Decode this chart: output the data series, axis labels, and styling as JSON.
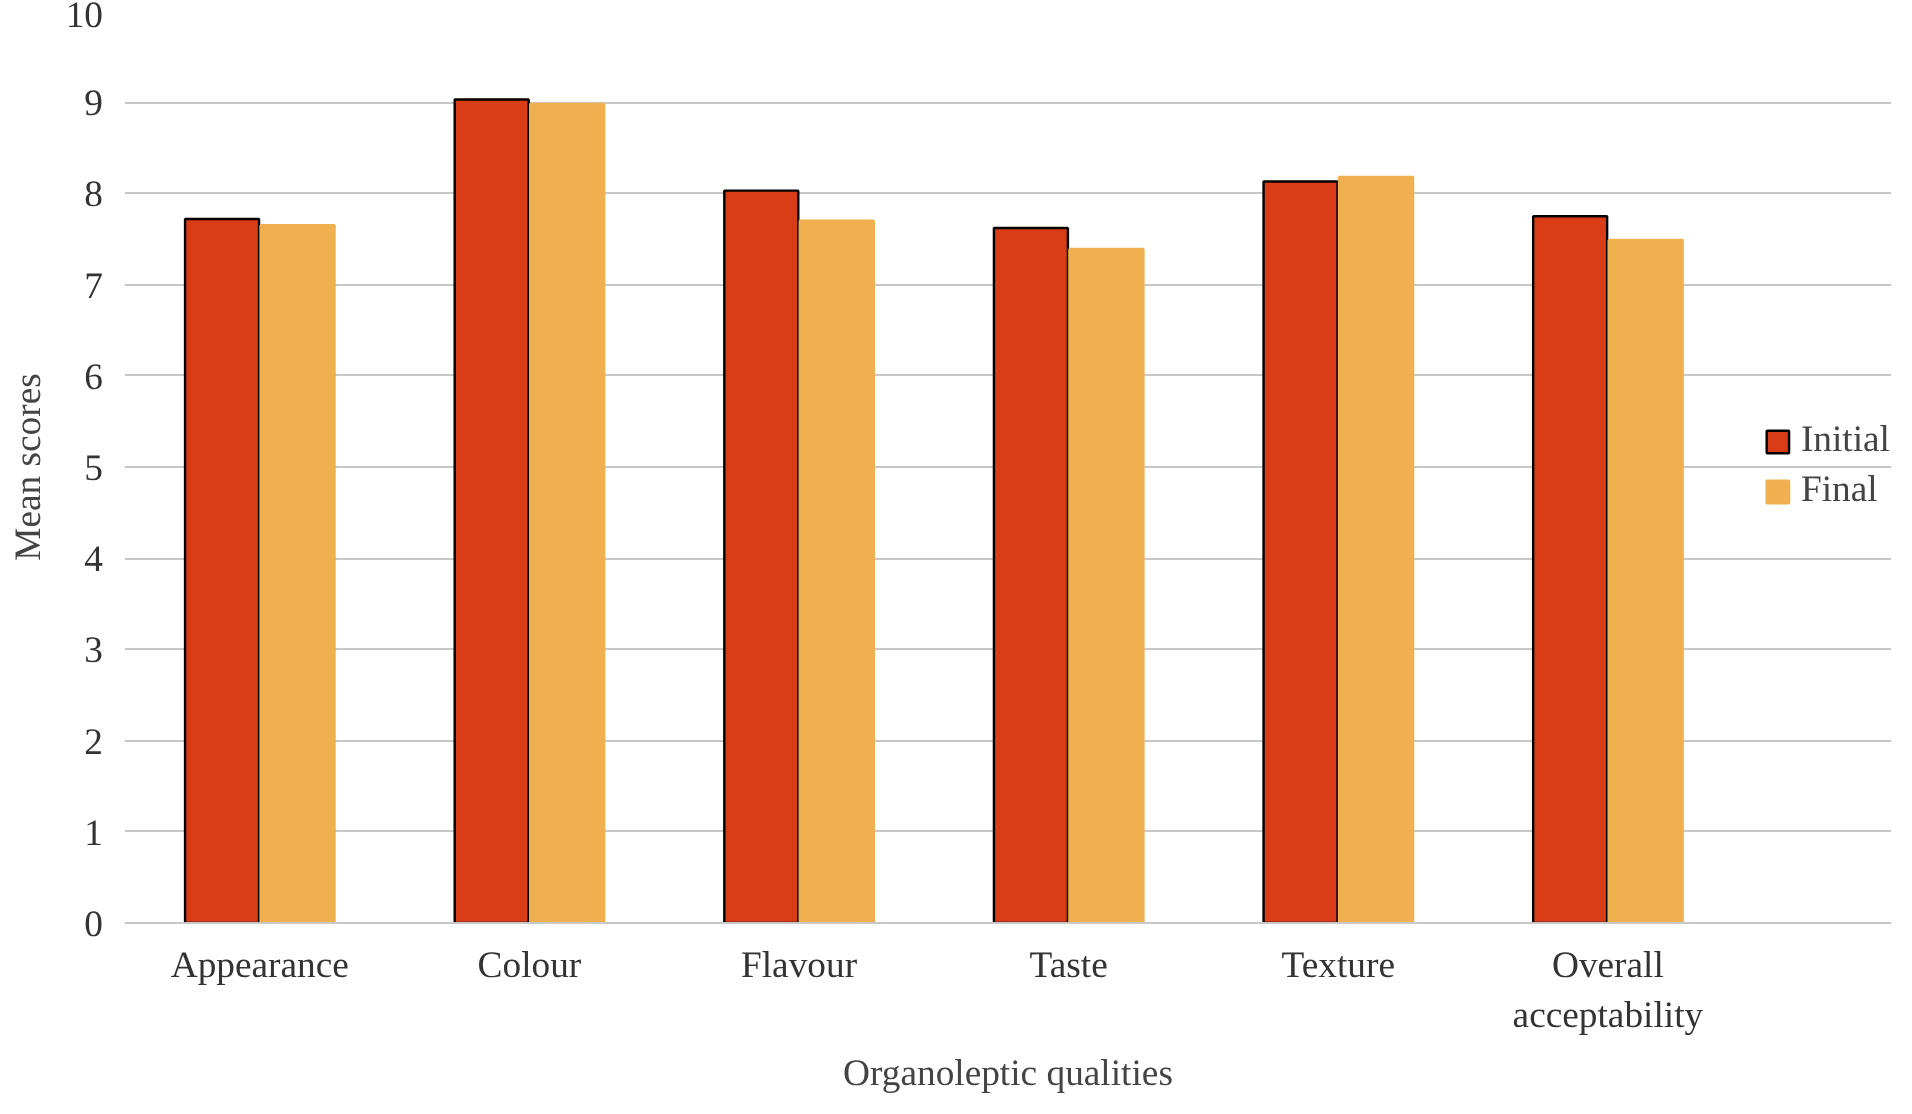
{
  "chart_data": {
    "type": "bar",
    "xlabel": "Organoleptic qualities",
    "ylabel": "Mean scores",
    "categories": [
      "Appearance",
      "Colour",
      "Flavour",
      "Taste",
      "Texture",
      "Overall acceptability"
    ],
    "series": [
      {
        "name": "Initial",
        "color": "#d93d17",
        "values": [
          7.72,
          9.03,
          8.03,
          7.62,
          8.13,
          7.75
        ]
      },
      {
        "name": "Final",
        "color": "#f0b050",
        "values": [
          7.65,
          8.98,
          7.7,
          7.39,
          8.18,
          7.49
        ]
      }
    ],
    "ylim": [
      0,
      10
    ],
    "yticks": [
      0,
      1,
      2,
      3,
      4,
      5,
      6,
      7,
      8,
      9,
      10
    ],
    "grid": "y",
    "legend": "right"
  }
}
